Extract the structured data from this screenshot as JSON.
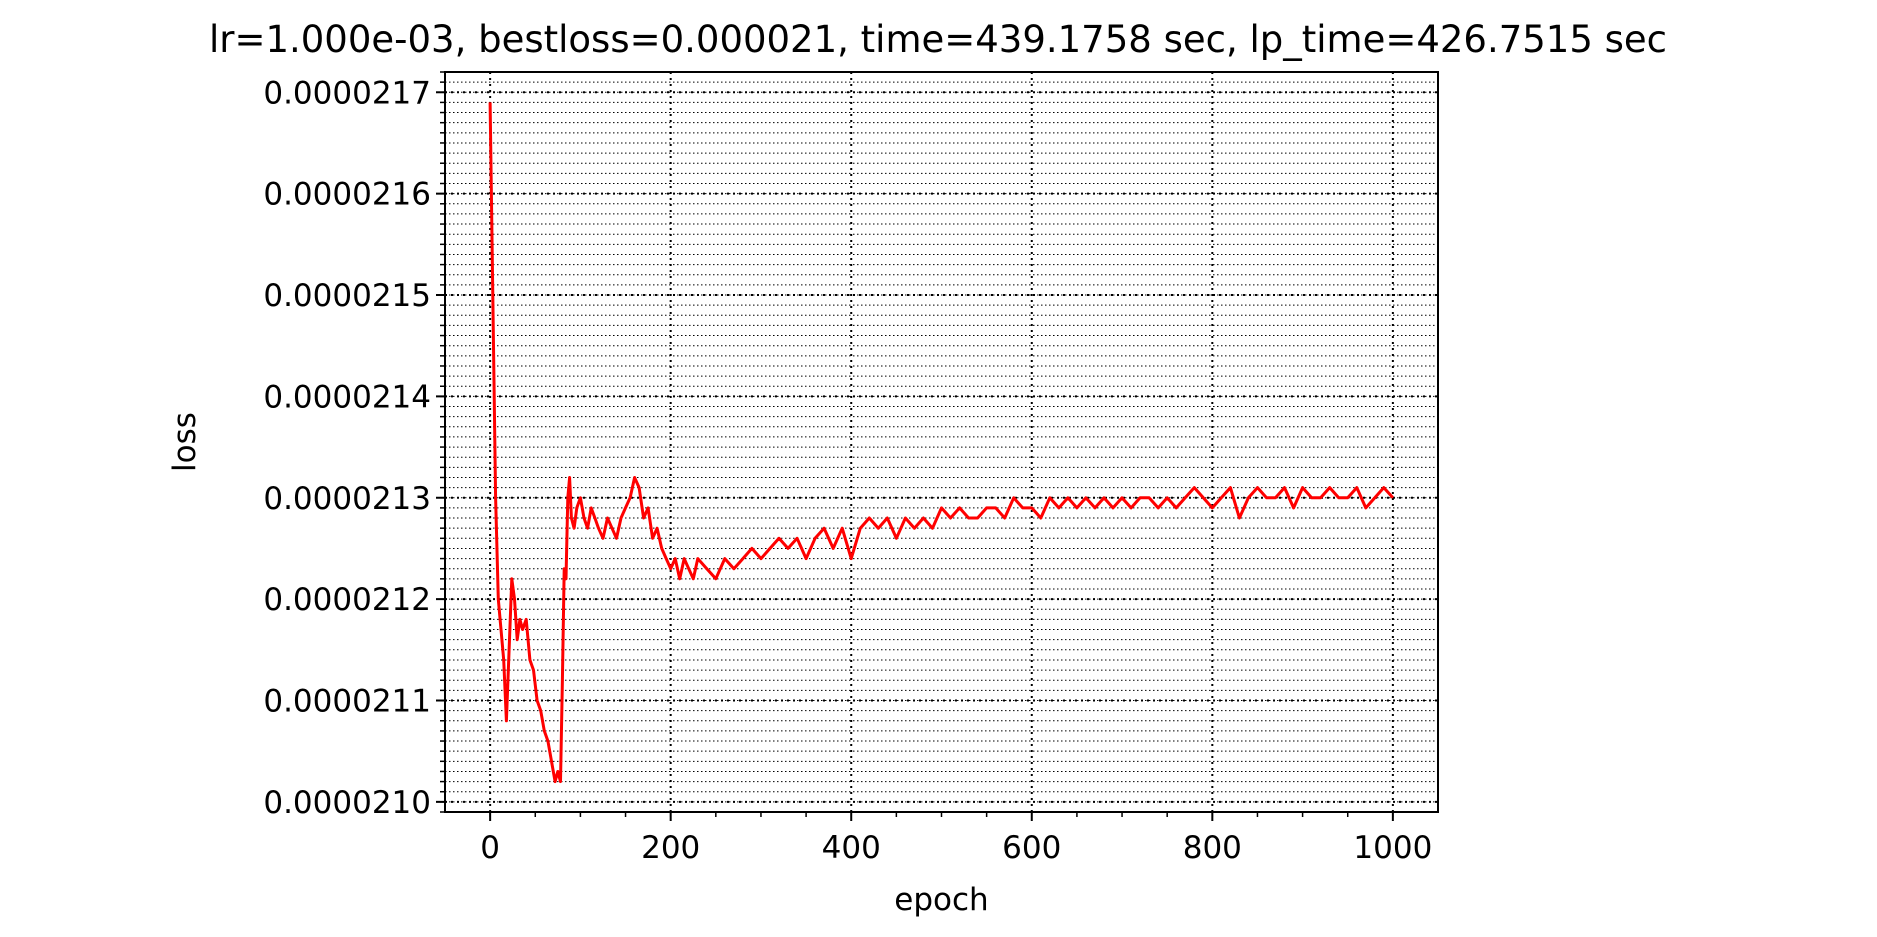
{
  "chart_data": {
    "type": "line",
    "title": "lr=1.000e-03, bestloss=0.000021, time=439.1758 sec, lp_time=426.7515 sec",
    "xlabel": "epoch",
    "ylabel": "loss",
    "xlim": [
      -50,
      1050
    ],
    "ylim": [
      2.099e-05,
      2.172e-05
    ],
    "xticks": [
      0,
      200,
      400,
      600,
      800,
      1000
    ],
    "xtick_labels": [
      "0",
      "200",
      "400",
      "600",
      "800",
      "1000"
    ],
    "yticks": [
      2.1e-05,
      2.11e-05,
      2.12e-05,
      2.13e-05,
      2.14e-05,
      2.15e-05,
      2.16e-05,
      2.17e-05
    ],
    "ytick_labels": [
      "0.0000210",
      "0.0000211",
      "0.0000212",
      "0.0000213",
      "0.0000214",
      "0.0000215",
      "0.0000216",
      "0.0000217"
    ],
    "grid": "major and minor, dotted",
    "series": [
      {
        "color": "#ff0000",
        "x": [
          0,
          3,
          6,
          9,
          12,
          15,
          18,
          21,
          24,
          27,
          30,
          33,
          36,
          40,
          44,
          48,
          52,
          56,
          60,
          64,
          68,
          72,
          75,
          78,
          80,
          82,
          84,
          86,
          88,
          90,
          93,
          96,
          100,
          104,
          108,
          112,
          116,
          120,
          125,
          130,
          135,
          140,
          145,
          150,
          155,
          160,
          165,
          170,
          175,
          180,
          185,
          190,
          195,
          200,
          205,
          210,
          215,
          220,
          225,
          230,
          240,
          250,
          260,
          270,
          280,
          290,
          300,
          310,
          320,
          330,
          340,
          350,
          360,
          370,
          380,
          390,
          400,
          410,
          420,
          430,
          440,
          450,
          460,
          470,
          480,
          490,
          500,
          510,
          520,
          530,
          540,
          550,
          560,
          570,
          580,
          590,
          600,
          610,
          620,
          630,
          640,
          650,
          660,
          670,
          680,
          690,
          700,
          710,
          720,
          730,
          740,
          750,
          760,
          770,
          780,
          790,
          800,
          810,
          820,
          830,
          840,
          850,
          860,
          870,
          880,
          890,
          900,
          910,
          920,
          930,
          940,
          950,
          960,
          970,
          980,
          990,
          1000
        ],
        "y": [
          2.169e-05,
          2.15e-05,
          2.13e-05,
          2.12e-05,
          2.117e-05,
          2.114e-05,
          2.108e-05,
          2.115e-05,
          2.122e-05,
          2.12e-05,
          2.116e-05,
          2.118e-05,
          2.117e-05,
          2.118e-05,
          2.114e-05,
          2.113e-05,
          2.11e-05,
          2.109e-05,
          2.107e-05,
          2.106e-05,
          2.104e-05,
          2.102e-05,
          2.103e-05,
          2.102e-05,
          2.112e-05,
          2.123e-05,
          2.122e-05,
          2.13e-05,
          2.132e-05,
          2.128e-05,
          2.127e-05,
          2.129e-05,
          2.13e-05,
          2.128e-05,
          2.127e-05,
          2.129e-05,
          2.128e-05,
          2.127e-05,
          2.126e-05,
          2.128e-05,
          2.127e-05,
          2.126e-05,
          2.128e-05,
          2.129e-05,
          2.13e-05,
          2.132e-05,
          2.131e-05,
          2.128e-05,
          2.129e-05,
          2.126e-05,
          2.127e-05,
          2.125e-05,
          2.124e-05,
          2.123e-05,
          2.124e-05,
          2.122e-05,
          2.124e-05,
          2.123e-05,
          2.122e-05,
          2.124e-05,
          2.123e-05,
          2.122e-05,
          2.124e-05,
          2.123e-05,
          2.124e-05,
          2.125e-05,
          2.124e-05,
          2.125e-05,
          2.126e-05,
          2.125e-05,
          2.126e-05,
          2.124e-05,
          2.126e-05,
          2.127e-05,
          2.125e-05,
          2.127e-05,
          2.124e-05,
          2.127e-05,
          2.128e-05,
          2.127e-05,
          2.128e-05,
          2.126e-05,
          2.128e-05,
          2.127e-05,
          2.128e-05,
          2.127e-05,
          2.129e-05,
          2.128e-05,
          2.129e-05,
          2.128e-05,
          2.128e-05,
          2.129e-05,
          2.129e-05,
          2.128e-05,
          2.13e-05,
          2.129e-05,
          2.129e-05,
          2.128e-05,
          2.13e-05,
          2.129e-05,
          2.13e-05,
          2.129e-05,
          2.13e-05,
          2.129e-05,
          2.13e-05,
          2.129e-05,
          2.13e-05,
          2.129e-05,
          2.13e-05,
          2.13e-05,
          2.129e-05,
          2.13e-05,
          2.129e-05,
          2.13e-05,
          2.131e-05,
          2.13e-05,
          2.129e-05,
          2.13e-05,
          2.131e-05,
          2.128e-05,
          2.13e-05,
          2.131e-05,
          2.13e-05,
          2.13e-05,
          2.131e-05,
          2.129e-05,
          2.131e-05,
          2.13e-05,
          2.13e-05,
          2.131e-05,
          2.13e-05,
          2.13e-05,
          2.131e-05,
          2.129e-05,
          2.13e-05,
          2.131e-05,
          2.13e-05
        ]
      }
    ]
  }
}
